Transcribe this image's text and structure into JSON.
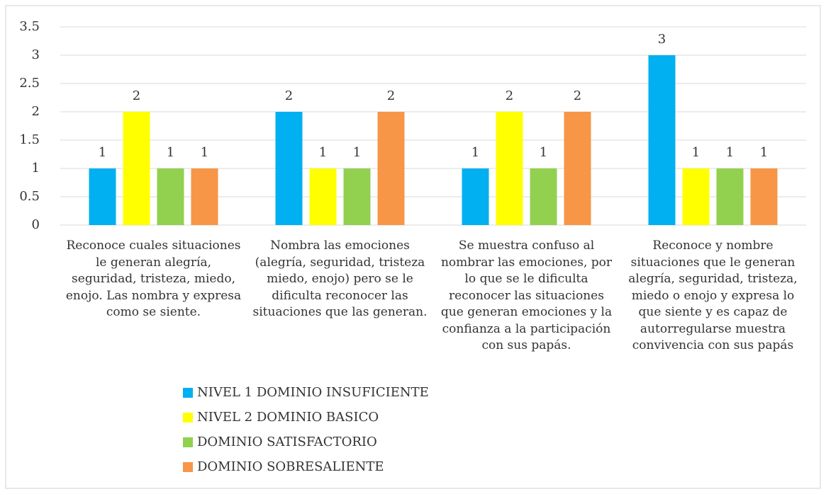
{
  "chart_data": {
    "type": "bar",
    "categories": [
      "Reconoce cuales situaciones le generan alegría, seguridad, tristeza, miedo, enojo. Las nombra y expresa como se siente.",
      "Nombra las emociones (alegría, seguridad, tristeza miedo, enojo) pero se le dificulta reconocer las situaciones que las generan.",
      "Se muestra confuso al nombrar las emociones, por lo que se le dificulta reconocer las situaciones que generan emociones y la confianza a la participación con sus papás.",
      "Reconoce y nombre situaciones que le generan alegría, seguridad, tristeza, miedo o enojo y expresa lo que siente y es capaz de autorregularse muestra convivencia con sus papás"
    ],
    "series": [
      {
        "name": "NIVEL 1 DOMINIO INSUFICIENTE",
        "color": "#00b0f0",
        "values": [
          1,
          2,
          1,
          3
        ]
      },
      {
        "name": "NIVEL 2 DOMINIO BASICO",
        "color": "#ffff00",
        "values": [
          2,
          1,
          2,
          1
        ]
      },
      {
        "name": "DOMINIO SATISFACTORIO",
        "color": "#92d050",
        "values": [
          1,
          1,
          1,
          1
        ]
      },
      {
        "name": "DOMINIO SOBRESALIENTE",
        "color": "#f79646",
        "values": [
          1,
          2,
          2,
          1
        ]
      }
    ],
    "ylim": [
      0,
      3.5
    ],
    "yticks": [
      0,
      0.5,
      1,
      1.5,
      2,
      2.5,
      3,
      3.5
    ],
    "grid": true,
    "legend": "bottom-left"
  }
}
